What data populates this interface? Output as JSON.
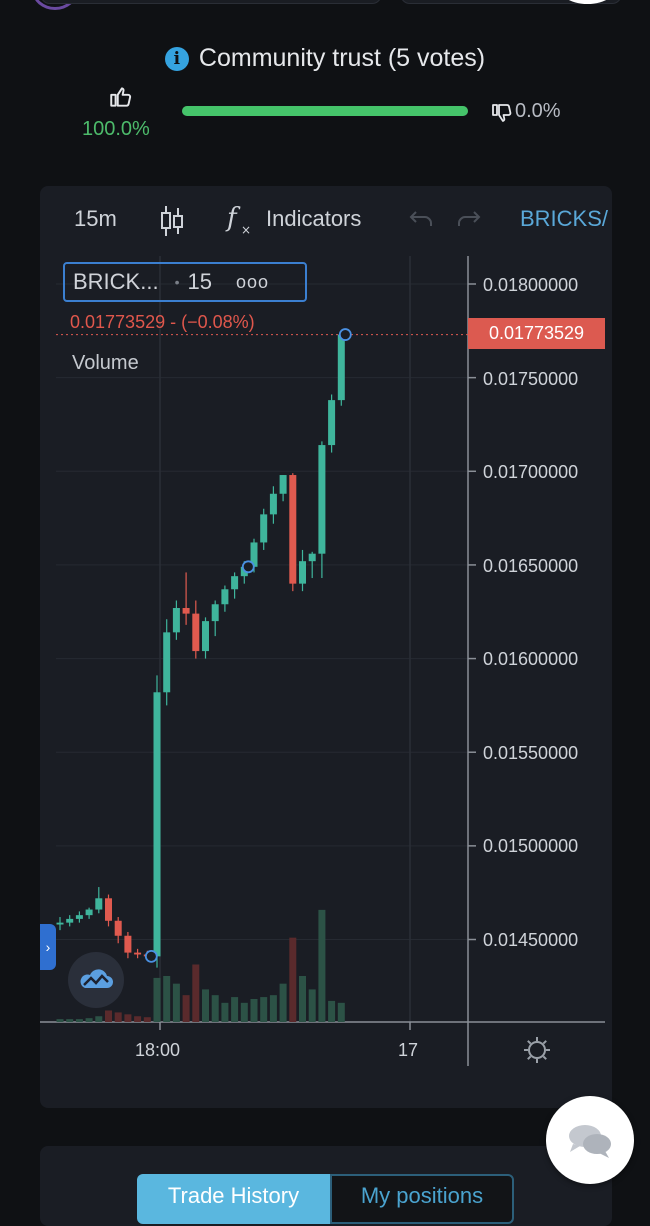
{
  "community": {
    "title": "Community trust (5 votes)",
    "up_percent": "100.0%",
    "down_percent": "0.0%",
    "trust_fraction": 1.0,
    "colors": {
      "up": "#4dbb6b",
      "bar": "#45c46a",
      "info": "#35a3e0"
    }
  },
  "toolbar": {
    "interval": "15m",
    "indicators_label": "Indicators",
    "symbol": "BRICKS/"
  },
  "legend": {
    "symbol": "BRICK...",
    "interval": "15",
    "more": "ooo",
    "price_change": "0.01773529  -  (−0.08%)",
    "volume_label": "Volume"
  },
  "price_axis": {
    "current_price": "0.01773529",
    "ticks": [
      "0.01800000",
      "0.01750000",
      "0.01700000",
      "0.01650000",
      "0.01600000",
      "0.01550000",
      "0.01500000",
      "0.01450000"
    ]
  },
  "time_axis": {
    "ticks": [
      "18:00",
      "17"
    ]
  },
  "tabs": {
    "trade_history": "Trade History",
    "my_positions": "My positions"
  },
  "colors": {
    "up": "#3fb59c",
    "down": "#e05a4f",
    "panel": "#1a1d24",
    "accent": "#5ab7df"
  },
  "chart_data": {
    "type": "candlestick",
    "y_range": [
      0.0141,
      0.0183
    ],
    "candles": [
      {
        "o": 0.01458,
        "h": 0.01462,
        "l": 0.01455,
        "c": 0.01459
      },
      {
        "o": 0.01459,
        "h": 0.01463,
        "l": 0.01457,
        "c": 0.01461
      },
      {
        "o": 0.01461,
        "h": 0.01465,
        "l": 0.01459,
        "c": 0.01463
      },
      {
        "o": 0.01463,
        "h": 0.01467,
        "l": 0.01461,
        "c": 0.01466
      },
      {
        "o": 0.01466,
        "h": 0.01478,
        "l": 0.01464,
        "c": 0.01472
      },
      {
        "o": 0.01472,
        "h": 0.01474,
        "l": 0.01457,
        "c": 0.0146
      },
      {
        "o": 0.0146,
        "h": 0.01462,
        "l": 0.01448,
        "c": 0.01452
      },
      {
        "o": 0.01452,
        "h": 0.01454,
        "l": 0.0144,
        "c": 0.01443
      },
      {
        "o": 0.01443,
        "h": 0.01445,
        "l": 0.0144,
        "c": 0.01442
      },
      {
        "o": 0.01442,
        "h": 0.01444,
        "l": 0.0144,
        "c": 0.01441
      },
      {
        "o": 0.01441,
        "h": 0.01591,
        "l": 0.01435,
        "c": 0.01582
      },
      {
        "o": 0.01582,
        "h": 0.01621,
        "l": 0.01575,
        "c": 0.01614
      },
      {
        "o": 0.01614,
        "h": 0.01631,
        "l": 0.0161,
        "c": 0.01627
      },
      {
        "o": 0.01627,
        "h": 0.01646,
        "l": 0.01618,
        "c": 0.01624
      },
      {
        "o": 0.01624,
        "h": 0.01631,
        "l": 0.016,
        "c": 0.01604
      },
      {
        "o": 0.01604,
        "h": 0.01622,
        "l": 0.016,
        "c": 0.0162
      },
      {
        "o": 0.0162,
        "h": 0.01631,
        "l": 0.01612,
        "c": 0.01629
      },
      {
        "o": 0.01629,
        "h": 0.01639,
        "l": 0.01625,
        "c": 0.01637
      },
      {
        "o": 0.01637,
        "h": 0.01646,
        "l": 0.01632,
        "c": 0.01644
      },
      {
        "o": 0.01644,
        "h": 0.01652,
        "l": 0.0164,
        "c": 0.01649
      },
      {
        "o": 0.01649,
        "h": 0.01664,
        "l": 0.01646,
        "c": 0.01662
      },
      {
        "o": 0.01662,
        "h": 0.0168,
        "l": 0.01658,
        "c": 0.01677
      },
      {
        "o": 0.01677,
        "h": 0.01692,
        "l": 0.01672,
        "c": 0.01688
      },
      {
        "o": 0.01688,
        "h": 0.01698,
        "l": 0.01684,
        "c": 0.01698
      },
      {
        "o": 0.01698,
        "h": 0.01699,
        "l": 0.01636,
        "c": 0.0164
      },
      {
        "o": 0.0164,
        "h": 0.01658,
        "l": 0.01636,
        "c": 0.01652
      },
      {
        "o": 0.01652,
        "h": 0.01657,
        "l": 0.01643,
        "c": 0.01656
      },
      {
        "o": 0.01656,
        "h": 0.01716,
        "l": 0.01643,
        "c": 0.01714
      },
      {
        "o": 0.01714,
        "h": 0.01741,
        "l": 0.0171,
        "c": 0.01738
      },
      {
        "o": 0.01738,
        "h": 0.01774,
        "l": 0.01735,
        "c": 0.01773
      }
    ],
    "volumes": [
      0.03,
      0.03,
      0.03,
      0.04,
      0.06,
      0.12,
      0.1,
      0.08,
      0.06,
      0.05,
      0.46,
      0.48,
      0.4,
      0.28,
      0.6,
      0.34,
      0.28,
      0.2,
      0.26,
      0.2,
      0.24,
      0.26,
      0.28,
      0.4,
      0.88,
      0.48,
      0.34,
      1.17,
      0.22,
      0.2
    ],
    "markers": [
      9,
      19,
      29
    ]
  }
}
